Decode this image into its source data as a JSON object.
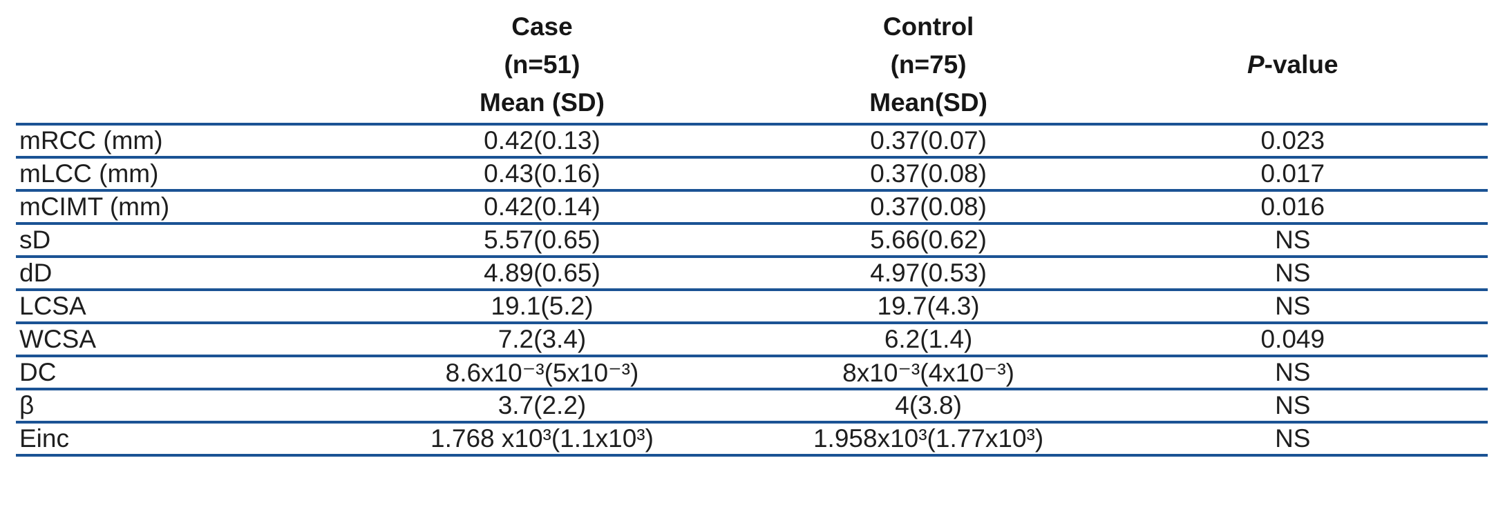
{
  "table": {
    "line_color": "#1b5394",
    "header": {
      "case": {
        "line1": "Case",
        "line2": "(n=51)",
        "line3": "Mean (SD)"
      },
      "control": {
        "line1": "Control",
        "line2": "(n=75)",
        "line3": "Mean(SD)"
      },
      "pvalue": {
        "italic_part": "P",
        "rest_part": "-value"
      }
    },
    "rows": [
      {
        "label": "mRCC (mm)",
        "case_value": "0.42(0.13)",
        "control_value": "0.37(0.07)",
        "p_value": "0.023"
      },
      {
        "label": "mLCC (mm)",
        "case_value": "0.43(0.16)",
        "control_value": "0.37(0.08)",
        "p_value": "0.017"
      },
      {
        "label": "mCIMT (mm)",
        "case_value": "0.42(0.14)",
        "control_value": "0.37(0.08)",
        "p_value": "0.016"
      },
      {
        "label": "sD",
        "case_value": "5.57(0.65)",
        "control_value": "5.66(0.62)",
        "p_value": "NS"
      },
      {
        "label": "dD",
        "case_value": "4.89(0.65)",
        "control_value": "4.97(0.53)",
        "p_value": "NS"
      },
      {
        "label": "LCSA",
        "case_value": "19.1(5.2)",
        "control_value": "19.7(4.3)",
        "p_value": "NS"
      },
      {
        "label": "WCSA",
        "case_value": "7.2(3.4)",
        "control_value": "6.2(1.4)",
        "p_value": "0.049"
      },
      {
        "label": "DC",
        "case_value": "8.6x10⁻³(5x10⁻³)",
        "control_value": "8x10⁻³(4x10⁻³)",
        "p_value": "NS"
      },
      {
        "label": "β",
        "case_value": "3.7(2.2)",
        "control_value": "4(3.8)",
        "p_value": "NS"
      },
      {
        "label": "Einc",
        "case_value": "1.768 x10³(1.1x10³)",
        "control_value": "1.958x10³(1.77x10³)",
        "p_value": "NS"
      }
    ]
  }
}
